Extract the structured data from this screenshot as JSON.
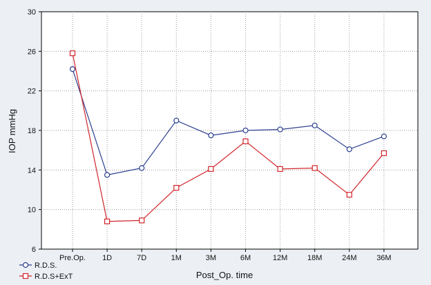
{
  "chart_data": {
    "type": "line",
    "categories": [
      "Pre.Op.",
      "1D",
      "7D",
      "1M",
      "3M",
      "6M",
      "12M",
      "18M",
      "24M",
      "36M"
    ],
    "series": [
      {
        "name": "R.D.S.",
        "color": "#2b3f8f",
        "marker": "circle",
        "values": [
          24.2,
          13.5,
          14.2,
          19.0,
          17.5,
          18.0,
          18.1,
          18.5,
          16.1,
          17.4
        ]
      },
      {
        "name": "R.D.S+ExT",
        "color": "#d1232a",
        "marker": "square",
        "values": [
          25.8,
          8.8,
          8.9,
          12.2,
          14.1,
          16.9,
          14.1,
          14.2,
          11.5,
          15.7
        ]
      }
    ],
    "xlabel": "Post_Op. time",
    "ylabel": "IOP mmHg",
    "ylim": [
      6,
      30
    ],
    "yticks": [
      "6",
      "10",
      "14",
      "18",
      "22",
      "26",
      "30"
    ],
    "grid": true,
    "legend_position": "bottom-left"
  }
}
